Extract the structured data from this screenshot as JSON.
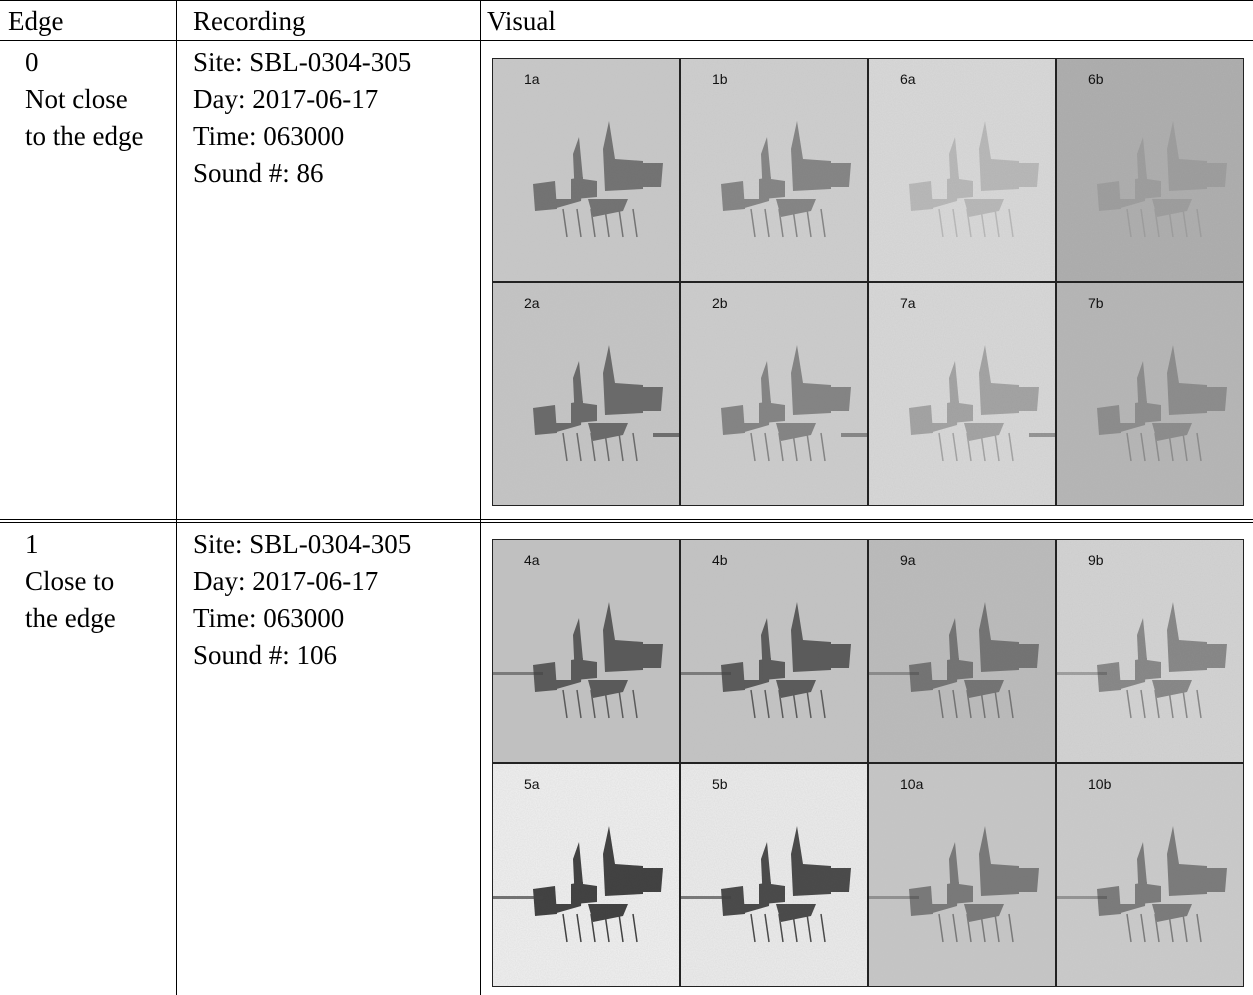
{
  "table": {
    "headers": {
      "edge": "Edge",
      "recording": "Recording",
      "visual": "Visual"
    },
    "rows": [
      {
        "edge_value": "0",
        "edge_desc_line1": "Not close",
        "edge_desc_line2": "to the edge",
        "site": "Site: SBL-0304-305",
        "day": "Day: 2017-06-17",
        "time": "Time: 063000",
        "sound": "Sound #: 86",
        "panels": [
          {
            "label": "1a",
            "shade": "#c8c8c8",
            "intensity": 0.55,
            "tone": 0
          },
          {
            "label": "1b",
            "shade": "#cfcfcf",
            "intensity": 0.45,
            "tone": 0
          },
          {
            "label": "6a",
            "shade": "#dadada",
            "intensity": 0.18,
            "tone": 0
          },
          {
            "label": "6b",
            "shade": "#a9a9a9",
            "intensity": 0.12,
            "tone": 0
          },
          {
            "label": "2a",
            "shade": "#c4c4c4",
            "intensity": 0.6,
            "tone": 1
          },
          {
            "label": "2b",
            "shade": "#cdcdcd",
            "intensity": 0.45,
            "tone": 1
          },
          {
            "label": "7a",
            "shade": "#d9d9d9",
            "intensity": 0.3,
            "tone": 1
          },
          {
            "label": "7b",
            "shade": "#b3b3b3",
            "intensity": 0.3,
            "tone": 0
          }
        ]
      },
      {
        "edge_value": "1",
        "edge_desc_line1": "Close to",
        "edge_desc_line2": "the edge",
        "site": "Site: SBL-0304-305",
        "day": "Day: 2017-06-17",
        "time": "Time: 063000",
        "sound": "Sound #: 106",
        "panels": [
          {
            "label": "4a",
            "shade": "#c1c1c1",
            "intensity": 0.7,
            "tone": 2
          },
          {
            "label": "4b",
            "shade": "#c3c3c3",
            "intensity": 0.7,
            "tone": 2
          },
          {
            "label": "9a",
            "shade": "#b9b9b9",
            "intensity": 0.5,
            "tone": 2
          },
          {
            "label": "9b",
            "shade": "#d4d4d4",
            "intensity": 0.45,
            "tone": 2
          },
          {
            "label": "5a",
            "shade": "#f2f2f2",
            "intensity": 0.9,
            "tone": 2
          },
          {
            "label": "5b",
            "shade": "#eeeeee",
            "intensity": 0.85,
            "tone": 2
          },
          {
            "label": "10a",
            "shade": "#c6c6c6",
            "intensity": 0.5,
            "tone": 2
          },
          {
            "label": "10b",
            "shade": "#cbcbcb",
            "intensity": 0.5,
            "tone": 2
          }
        ]
      }
    ]
  }
}
